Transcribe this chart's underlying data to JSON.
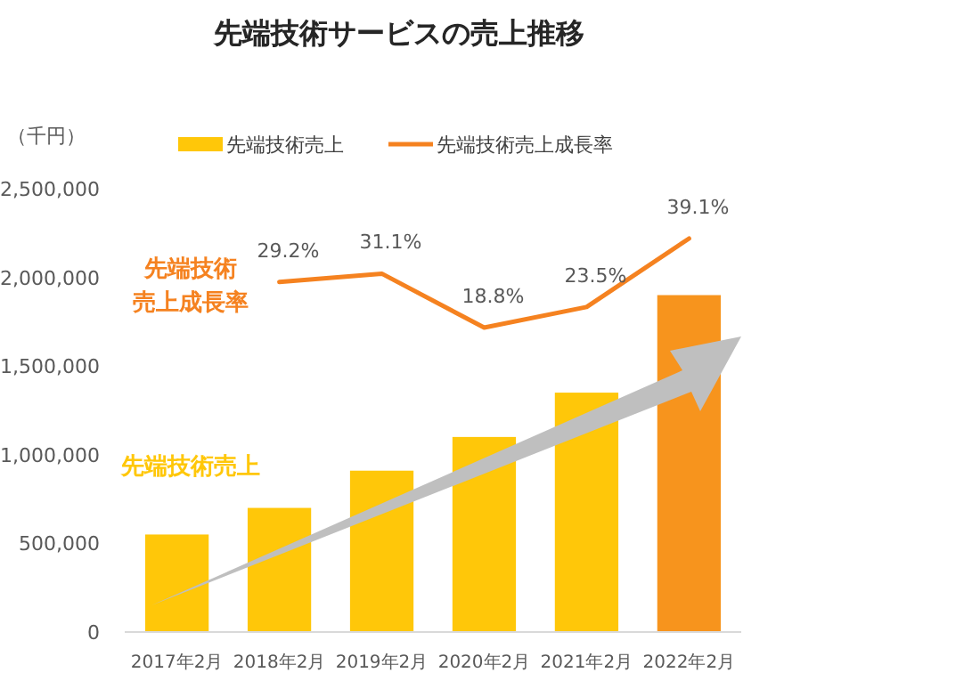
{
  "chart_data": {
    "type": "bar",
    "title": "先端技術サービスの売上推移",
    "ylabel": "（千円）",
    "categories": [
      "2017年2月",
      "2018年2月",
      "2019年2月",
      "2020年2月",
      "2021年2月",
      "2022年2月"
    ],
    "series": [
      {
        "name": "先端技術売上",
        "color": "#ffc709",
        "colors": [
          "#ffc709",
          "#ffc709",
          "#ffc709",
          "#ffc709",
          "#ffc709",
          "#f7941d"
        ],
        "values": [
          550000,
          700000,
          910000,
          1100000,
          1350000,
          1900000
        ]
      },
      {
        "name": "先端技術売上成長率",
        "type": "line",
        "axis": "y2",
        "color": "#f58220",
        "values": [
          null,
          29.2,
          31.1,
          18.8,
          23.5,
          39.1
        ],
        "value_labels": [
          null,
          "29.2%",
          "31.1%",
          "18.8%",
          "23.5%",
          "39.1%"
        ]
      }
    ],
    "ylim": [
      0,
      2500000
    ],
    "yticks": [
      {
        "value": 0,
        "label": "0"
      },
      {
        "value": 500000,
        "label": "500,000"
      },
      {
        "value": 1000000,
        "label": "1,000,000"
      },
      {
        "value": 1500000,
        "label": "1,500,000"
      },
      {
        "value": 2000000,
        "label": "2,000,000"
      },
      {
        "value": 2500000,
        "label": "2,500,000"
      }
    ],
    "legend": "top",
    "grid": false,
    "marker": "none",
    "line_style": "solid",
    "annotations": [
      "先端技術売上成長率",
      "先端技術売上"
    ]
  }
}
